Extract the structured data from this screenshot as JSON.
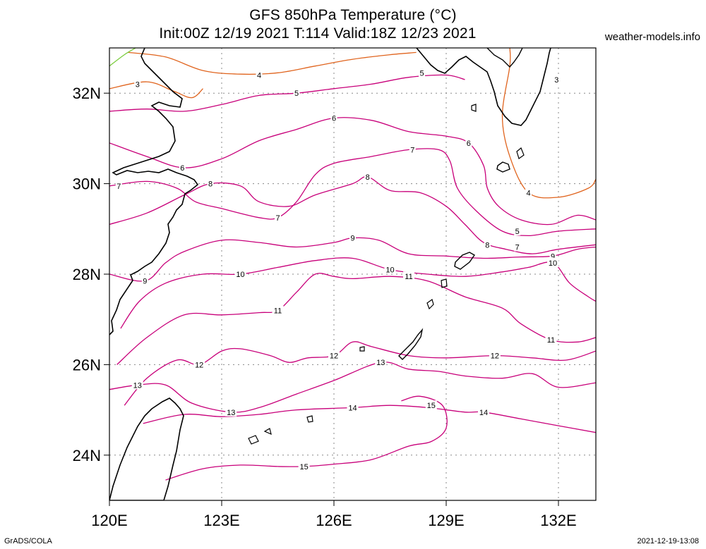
{
  "title_line1": "GFS 850hPa Temperature (°C)",
  "title_line2": "Init:00Z 12/19 2021 T:114 Valid:18Z 12/23 2021",
  "credit": "weather-models.info",
  "footer_left": "GrADS/COLA",
  "footer_right": "2021-12-19-13:08",
  "map": {
    "lon_range": [
      120,
      133
    ],
    "lat_range": [
      23,
      33
    ],
    "lon_ticks": [
      {
        "value": 120,
        "label": "120E"
      },
      {
        "value": 123,
        "label": "123E"
      },
      {
        "value": 126,
        "label": "126E"
      },
      {
        "value": 129,
        "label": "129E"
      },
      {
        "value": 132,
        "label": "132E"
      }
    ],
    "lat_ticks": [
      {
        "value": 24,
        "label": "24N"
      },
      {
        "value": 26,
        "label": "26N"
      },
      {
        "value": 28,
        "label": "28N"
      },
      {
        "value": 30,
        "label": "30N"
      },
      {
        "value": 32,
        "label": "32N"
      }
    ],
    "grid": "dotted",
    "contour_colors": {
      "3": "#e0641e",
      "4": "#e0641e",
      "5": "#c8007a",
      "warm": "#c8007a",
      "green": "#7acc3c"
    },
    "contours": [
      {
        "level": "3",
        "color": "#e0641e",
        "label_at": [
          [
            120.75,
            32.2
          ],
          [
            131.95,
            32.3
          ]
        ],
        "path": [
          [
            120,
            32.1
          ],
          [
            121,
            32.25
          ],
          [
            121.7,
            32.05
          ],
          [
            122.2,
            31.9
          ],
          [
            122.5,
            32.1
          ]
        ]
      },
      {
        "level": "4",
        "color": "#e0641e",
        "label_at": [
          [
            124.0,
            32.4
          ],
          [
            131.2,
            29.8
          ]
        ],
        "path": [
          [
            120.5,
            32.9
          ],
          [
            121.5,
            32.8
          ],
          [
            122.5,
            32.5
          ],
          [
            123.5,
            32.42
          ],
          [
            124.5,
            32.45
          ],
          [
            125.5,
            32.6
          ],
          [
            126.5,
            32.75
          ],
          [
            127.5,
            32.85
          ],
          [
            128.2,
            32.9
          ]
        ]
      },
      {
        "level": "4b",
        "color": "#e0641e",
        "label_at": [],
        "path": [
          [
            130.7,
            33
          ],
          [
            130.7,
            32.6
          ],
          [
            130.5,
            31.5
          ],
          [
            130.7,
            30.6
          ],
          [
            131.2,
            29.8
          ],
          [
            132.0,
            29.7
          ],
          [
            132.8,
            29.9
          ],
          [
            133,
            30.1
          ]
        ]
      },
      {
        "level": "5",
        "color": "#c8007a",
        "label_at": [
          [
            125.0,
            32.0
          ],
          [
            128.35,
            32.45
          ],
          [
            130.9,
            28.95
          ]
        ],
        "path": [
          [
            120,
            31.6
          ],
          [
            121,
            31.65
          ],
          [
            122,
            31.6
          ],
          [
            123,
            31.75
          ],
          [
            124,
            31.95
          ],
          [
            125,
            32.0
          ],
          [
            126,
            32.1
          ],
          [
            127,
            32.2
          ],
          [
            128,
            32.35
          ],
          [
            129,
            32.4
          ],
          [
            129.5,
            32.3
          ]
        ]
      },
      {
        "level": "6",
        "color": "#c8007a",
        "label_at": [
          [
            121.95,
            30.35
          ],
          [
            126.0,
            31.45
          ],
          [
            129.6,
            30.9
          ]
        ],
        "path": [
          [
            120,
            30.9
          ],
          [
            121,
            30.6
          ],
          [
            122,
            30.35
          ],
          [
            123,
            30.55
          ],
          [
            124,
            30.95
          ],
          [
            125,
            31.2
          ],
          [
            126,
            31.45
          ],
          [
            127,
            31.4
          ],
          [
            128,
            31.15
          ],
          [
            129,
            31.05
          ],
          [
            129.6,
            30.9
          ],
          [
            130,
            30.4
          ],
          [
            130.1,
            29.9
          ],
          [
            130.4,
            29.5
          ],
          [
            131,
            29.2
          ],
          [
            131.8,
            29.1
          ],
          [
            132.5,
            29.3
          ],
          [
            133,
            29.2
          ]
        ]
      },
      {
        "level": "7",
        "color": "#c8007a",
        "label_at": [
          [
            120.25,
            29.95
          ],
          [
            124.5,
            29.25
          ],
          [
            128.1,
            30.75
          ],
          [
            130.9,
            28.6
          ]
        ],
        "path": [
          [
            120,
            29.95
          ],
          [
            121,
            30.05
          ],
          [
            121.8,
            29.9
          ],
          [
            122.3,
            29.6
          ],
          [
            123,
            29.45
          ],
          [
            124,
            29.25
          ],
          [
            124.5,
            29.25
          ],
          [
            125,
            29.6
          ],
          [
            125.5,
            30.2
          ],
          [
            126,
            30.45
          ],
          [
            127,
            30.6
          ],
          [
            128,
            30.75
          ],
          [
            128.8,
            30.75
          ],
          [
            129.1,
            30.5
          ],
          [
            129.3,
            29.9
          ],
          [
            129.8,
            29.4
          ],
          [
            130.5,
            28.95
          ],
          [
            131.2,
            28.85
          ],
          [
            132,
            28.95
          ],
          [
            133,
            29.0
          ]
        ]
      },
      {
        "level": "8",
        "color": "#c8007a",
        "label_at": [
          [
            122.7,
            30.0
          ],
          [
            126.9,
            30.15
          ],
          [
            130.1,
            28.65
          ]
        ],
        "path": [
          [
            120,
            29.1
          ],
          [
            121,
            29.35
          ],
          [
            122,
            29.75
          ],
          [
            122.7,
            30.0
          ],
          [
            123.5,
            29.95
          ],
          [
            124,
            29.6
          ],
          [
            124.8,
            29.5
          ],
          [
            125.5,
            29.75
          ],
          [
            126.5,
            30.0
          ],
          [
            126.9,
            30.15
          ],
          [
            127.5,
            29.85
          ],
          [
            128.3,
            29.8
          ],
          [
            129,
            29.5
          ],
          [
            129.5,
            29.1
          ],
          [
            130,
            28.7
          ],
          [
            130.6,
            28.55
          ],
          [
            131.3,
            28.45
          ],
          [
            132,
            28.55
          ],
          [
            133,
            28.65
          ]
        ]
      },
      {
        "level": "9",
        "color": "#c8007a",
        "label_at": [
          [
            120.95,
            27.85
          ],
          [
            126.5,
            28.8
          ],
          [
            131.85,
            28.4
          ]
        ],
        "path": [
          [
            120,
            28.0
          ],
          [
            120.95,
            27.85
          ],
          [
            121.5,
            28.25
          ],
          [
            122,
            28.5
          ],
          [
            123,
            28.75
          ],
          [
            124,
            28.7
          ],
          [
            125,
            28.6
          ],
          [
            126,
            28.7
          ],
          [
            126.5,
            28.8
          ],
          [
            127.2,
            28.75
          ],
          [
            128,
            28.45
          ],
          [
            129,
            28.4
          ],
          [
            130,
            28.35
          ],
          [
            131,
            28.38
          ],
          [
            131.85,
            28.4
          ],
          [
            132.5,
            28.55
          ],
          [
            133,
            28.6
          ]
        ]
      },
      {
        "level": "10",
        "color": "#c8007a",
        "label_at": [
          [
            123.5,
            28.0
          ],
          [
            127.5,
            28.1
          ],
          [
            131.85,
            28.25
          ]
        ],
        "path": [
          [
            120.3,
            26.8
          ],
          [
            120.8,
            27.4
          ],
          [
            121.5,
            27.8
          ],
          [
            122.5,
            28.0
          ],
          [
            123.5,
            28.0
          ],
          [
            124.5,
            28.15
          ],
          [
            125.5,
            28.3
          ],
          [
            126.5,
            28.35
          ],
          [
            127.5,
            28.1
          ],
          [
            128.5,
            28.0
          ],
          [
            129.5,
            27.95
          ],
          [
            130.5,
            28.05
          ],
          [
            131.2,
            28.15
          ],
          [
            131.85,
            28.25
          ],
          [
            132.3,
            27.8
          ],
          [
            132.8,
            27.5
          ],
          [
            133,
            27.4
          ]
        ]
      },
      {
        "level": "11",
        "color": "#c8007a",
        "label_at": [
          [
            124.5,
            27.2
          ],
          [
            128.0,
            27.95
          ],
          [
            131.8,
            26.55
          ]
        ],
        "path": [
          [
            120.2,
            26.0
          ],
          [
            121,
            26.6
          ],
          [
            122,
            27.1
          ],
          [
            123,
            27.1
          ],
          [
            124,
            27.15
          ],
          [
            124.5,
            27.2
          ],
          [
            125,
            27.6
          ],
          [
            125.5,
            28.0
          ],
          [
            126,
            27.95
          ],
          [
            126.5,
            27.9
          ],
          [
            127.5,
            27.95
          ],
          [
            128.5,
            27.85
          ],
          [
            129.5,
            27.5
          ],
          [
            130.5,
            27.25
          ],
          [
            131,
            26.9
          ],
          [
            131.8,
            26.55
          ],
          [
            132.5,
            26.5
          ],
          [
            133,
            26.6
          ]
        ]
      },
      {
        "level": "12",
        "color": "#c8007a",
        "label_at": [
          [
            122.4,
            26.0
          ],
          [
            126.0,
            26.2
          ],
          [
            130.3,
            26.2
          ]
        ],
        "path": [
          [
            120.4,
            25.1
          ],
          [
            121,
            25.7
          ],
          [
            121.8,
            26.1
          ],
          [
            122.4,
            26.0
          ],
          [
            123,
            26.3
          ],
          [
            123.5,
            26.35
          ],
          [
            124.3,
            26.2
          ],
          [
            124.8,
            26.05
          ],
          [
            125.3,
            26.15
          ],
          [
            126,
            26.2
          ],
          [
            126.5,
            26.5
          ],
          [
            127,
            26.4
          ],
          [
            128,
            26.2
          ],
          [
            129,
            26.15
          ],
          [
            130.3,
            26.2
          ],
          [
            131.3,
            26.15
          ],
          [
            132.2,
            26.1
          ],
          [
            133,
            26.3
          ]
        ]
      },
      {
        "level": "13",
        "color": "#c8007a",
        "label_at": [
          [
            120.75,
            25.55
          ],
          [
            123.25,
            24.95
          ],
          [
            127.25,
            26.05
          ]
        ],
        "path": [
          [
            120,
            25.45
          ],
          [
            120.75,
            25.55
          ],
          [
            121.5,
            25.55
          ],
          [
            122.2,
            25.15
          ],
          [
            123.25,
            24.95
          ],
          [
            124,
            25.05
          ],
          [
            125,
            25.35
          ],
          [
            126,
            25.65
          ],
          [
            127.25,
            26.05
          ],
          [
            128,
            25.9
          ],
          [
            128.8,
            25.85
          ],
          [
            129.5,
            25.75
          ],
          [
            130.5,
            25.7
          ],
          [
            131.3,
            25.8
          ],
          [
            132,
            25.5
          ],
          [
            133,
            25.6
          ]
        ]
      },
      {
        "level": "14",
        "color": "#c8007a",
        "label_at": [
          [
            126.5,
            25.05
          ],
          [
            130.0,
            24.95
          ]
        ],
        "path": [
          [
            120.9,
            24.7
          ],
          [
            122.0,
            24.9
          ],
          [
            123,
            24.85
          ],
          [
            124,
            24.9
          ],
          [
            125,
            25.0
          ],
          [
            126.5,
            25.05
          ],
          [
            127.5,
            25.1
          ],
          [
            128.5,
            25.05
          ],
          [
            129.5,
            24.95
          ],
          [
            130.0,
            24.95
          ],
          [
            131,
            24.8
          ],
          [
            132,
            24.65
          ],
          [
            133,
            24.5
          ]
        ]
      },
      {
        "level": "15",
        "color": "#c8007a",
        "label_at": [
          [
            125.2,
            23.75
          ],
          [
            128.6,
            25.1
          ]
        ],
        "path": [
          [
            121.5,
            23.45
          ],
          [
            122.5,
            23.7
          ],
          [
            123.5,
            23.78
          ],
          [
            124.5,
            23.75
          ],
          [
            125.2,
            23.75
          ],
          [
            126,
            23.8
          ],
          [
            127,
            23.9
          ],
          [
            128,
            24.2
          ],
          [
            128.6,
            24.3
          ],
          [
            129,
            24.6
          ],
          [
            128.9,
            25.1
          ],
          [
            128.3,
            25.3
          ],
          [
            127.8,
            25.2
          ]
        ]
      }
    ]
  }
}
